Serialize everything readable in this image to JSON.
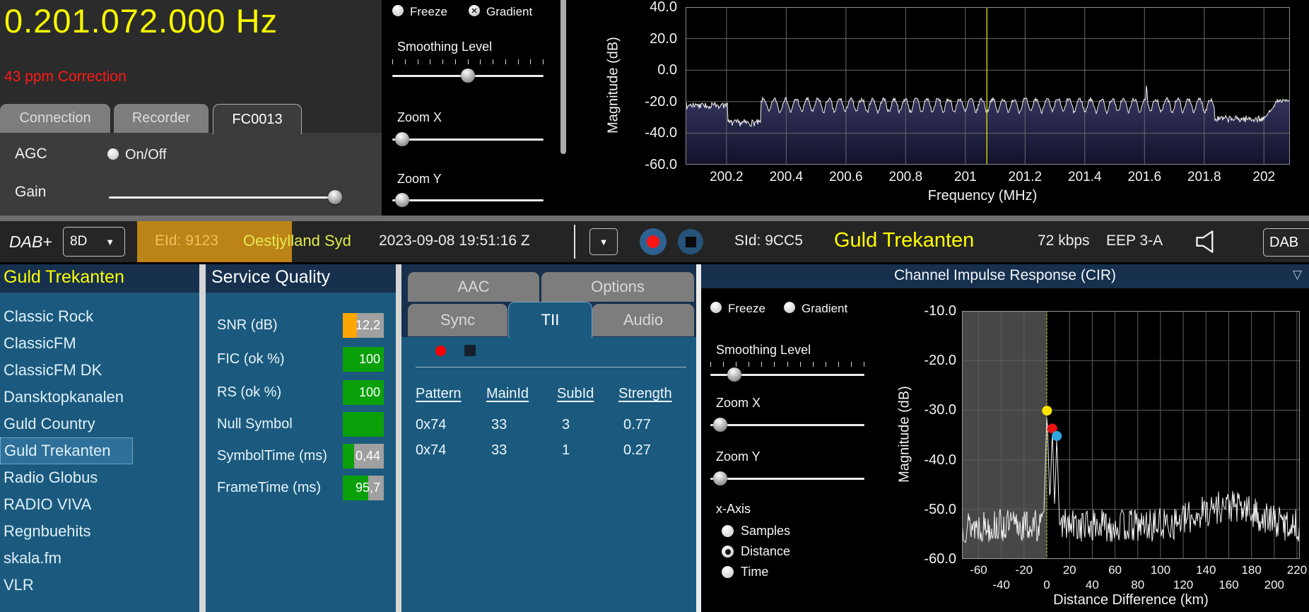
{
  "tuner": {
    "frequency_display": "0.201.072.000 Hz",
    "correction": "43 ppm Correction",
    "tabs": [
      "Connection",
      "Recorder",
      "FC0013"
    ],
    "active_tab": "FC0013",
    "agc_label": "AGC",
    "agc_toggle_label": "On/Off",
    "gain_label": "Gain",
    "gain_position": 1.0
  },
  "spectrum_panel": {
    "freeze_label": "Freeze",
    "freeze_checked": false,
    "gradient_label": "Gradient",
    "gradient_checked": true,
    "smoothing_label": "Smoothing Level",
    "smoothing_position": 0.5,
    "zoom_x_label": "Zoom X",
    "zoom_x_position": 0.02,
    "zoom_y_label": "Zoom Y",
    "zoom_y_position": 0.02
  },
  "dab_bar": {
    "mode": "DAB+",
    "channel": "8D",
    "eid": "EId: 9123",
    "ensemble": "Oestjylland Syd",
    "timestamp": "2023-09-08  19:51:16 Z",
    "sid": "SId: 9CC5",
    "service": "Guld Trekanten",
    "bitrate": "72 kbps",
    "protection": "EEP 3-A",
    "output": "DAB",
    "accent_orange": "#BC8318",
    "eid_color": "#F6BD5E",
    "ensemble_color": "#E3EC4B",
    "service_color": "#FFFF00"
  },
  "service_list": {
    "header": "Guld Trekanten",
    "items": [
      "Classic Rock",
      "ClassicFM",
      "ClassicFM DK",
      "Dansktopkanalen",
      "Guld Country",
      "Guld Trekanten",
      "Radio Globus",
      "RADIO VIVA",
      "Regnbuehits",
      "skala.fm",
      "VLR"
    ],
    "selected_index": 5
  },
  "service_quality": {
    "title": "Service Quality",
    "metrics": [
      {
        "label": "SNR (dB)",
        "value": "12,2",
        "fill": 0.35,
        "color": "#FFA500"
      },
      {
        "label": "FIC (ok %)",
        "value": "100",
        "fill": 1.0,
        "color": "#0AA00A"
      },
      {
        "label": "RS (ok %)",
        "value": "100",
        "fill": 1.0,
        "color": "#0AA00A"
      },
      {
        "label": "Null Symbol",
        "value": "",
        "fill": 1.0,
        "color": "#0AA00A"
      },
      {
        "label": "SymbolTime (ms)",
        "value": "0,44",
        "fill": 0.27,
        "color": "#0AA00A"
      },
      {
        "label": "FrameTime (ms)",
        "value": "95,7",
        "fill": 0.62,
        "color": "#0AA00A"
      }
    ]
  },
  "tii_panel": {
    "tabs_top": [
      "AAC",
      "Options"
    ],
    "tabs": [
      "Sync",
      "TII",
      "Audio"
    ],
    "active_tab": "TII",
    "columns": [
      "Pattern",
      "MainId",
      "SubId",
      "Strength"
    ],
    "rows": [
      [
        "0x74",
        "33",
        "3",
        "0.77"
      ],
      [
        "0x74",
        "33",
        "1",
        "0.27"
      ]
    ]
  },
  "cir_panel": {
    "title": "Channel Impulse Response (CIR)",
    "freeze_label": "Freeze",
    "freeze_checked": false,
    "gradient_label": "Gradient",
    "gradient_checked": false,
    "smoothing_label": "Smoothing Level",
    "smoothing_position": 0.12,
    "zoom_x_label": "Zoom X",
    "zoom_x_position": 0.02,
    "zoom_y_label": "Zoom Y",
    "zoom_y_position": 0.02,
    "x_axis_label": "x-Axis",
    "x_axis_options": [
      "Samples",
      "Distance",
      "Time"
    ],
    "x_axis_selected": "Distance"
  },
  "chart_data": [
    {
      "type": "line",
      "title": "RF Spectrum",
      "xlabel": "Frequency (MHz)",
      "ylabel": "Magnitude (dB)",
      "xlim": [
        200.063,
        202.087
      ],
      "ylim": [
        -60,
        40
      ],
      "xticks": [
        200.2,
        200.4,
        200.6,
        200.8,
        201.0,
        201.2,
        201.4,
        201.6,
        201.8,
        202.0
      ],
      "xtick_labels": [
        "200.2",
        "200.4",
        "200.6",
        "200.8",
        "201",
        "201.2",
        "201.4",
        "201.6",
        "201.8",
        "202"
      ],
      "ytick_labels": [
        "40.0",
        "20.0",
        "0.0",
        "-20.0",
        "-40.0",
        "-60.0"
      ],
      "yticks": [
        40,
        20,
        0,
        -20,
        -40,
        -60
      ],
      "grid": true,
      "marker_line_mhz": 201.072,
      "marker_line_color": "#F5F500",
      "envelope": [
        {
          "from": 200.063,
          "to": 200.205,
          "level_db": -20.5
        },
        {
          "from": 200.205,
          "to": 200.315,
          "level_db": -33.5
        },
        {
          "from": 200.315,
          "to": 201.835,
          "type": "dab-ensemble",
          "peak_db": -18.5,
          "valley_db": -27,
          "ripple_mhz": 0.0365
        },
        {
          "spike_at_mhz": 201.607,
          "peak_db": -8
        },
        {
          "from": 201.835,
          "to": 202.0,
          "level_db": -31
        },
        {
          "from": 202.0,
          "to": 202.087,
          "level_db": -19.5
        }
      ],
      "noise_db": 1.5,
      "fill_gradient": [
        "#3A3A66",
        "#12122C"
      ]
    },
    {
      "type": "line",
      "title": "Channel Impulse Response (CIR)",
      "xlabel": "Distance Difference (km)",
      "ylabel": "Magnitude (dB)",
      "xlim": [
        -74.6,
        222.5
      ],
      "ylim": [
        -60,
        -10
      ],
      "xticks_row1": [
        "-60",
        "-20",
        "20",
        "60",
        "100",
        "140",
        "180",
        "220"
      ],
      "xticks_row1_vals": [
        -60,
        -20,
        20,
        60,
        100,
        140,
        180,
        220
      ],
      "xticks_row2": [
        "-40",
        "0",
        "40",
        "80",
        "120",
        "160",
        "200"
      ],
      "xticks_row2_vals": [
        -40,
        0,
        40,
        80,
        120,
        160,
        200
      ],
      "ytick_labels": [
        "-10.0",
        "-20.0",
        "-30.0",
        "-40.0",
        "-50.0",
        "-60.0"
      ],
      "yticks": [
        -10,
        -20,
        -30,
        -40,
        -50,
        -60
      ],
      "grid": true,
      "noise_floor_db": -53.3,
      "noise_db": 3.4,
      "hump": {
        "km": 158,
        "boost_db": 4,
        "width_km": 34
      },
      "peaks": [
        {
          "km": 0.2,
          "db": -30.1,
          "marker_color": "#FFE600"
        },
        {
          "km": 4.8,
          "db": -33.7,
          "marker_color": "#E81414"
        },
        {
          "km": 8.8,
          "db": -35.2,
          "marker_color": "#2FA8DE"
        }
      ],
      "shaded_region": {
        "to_km": 0,
        "color": "#474747"
      },
      "zero_line_color": "#F0F000"
    }
  ]
}
